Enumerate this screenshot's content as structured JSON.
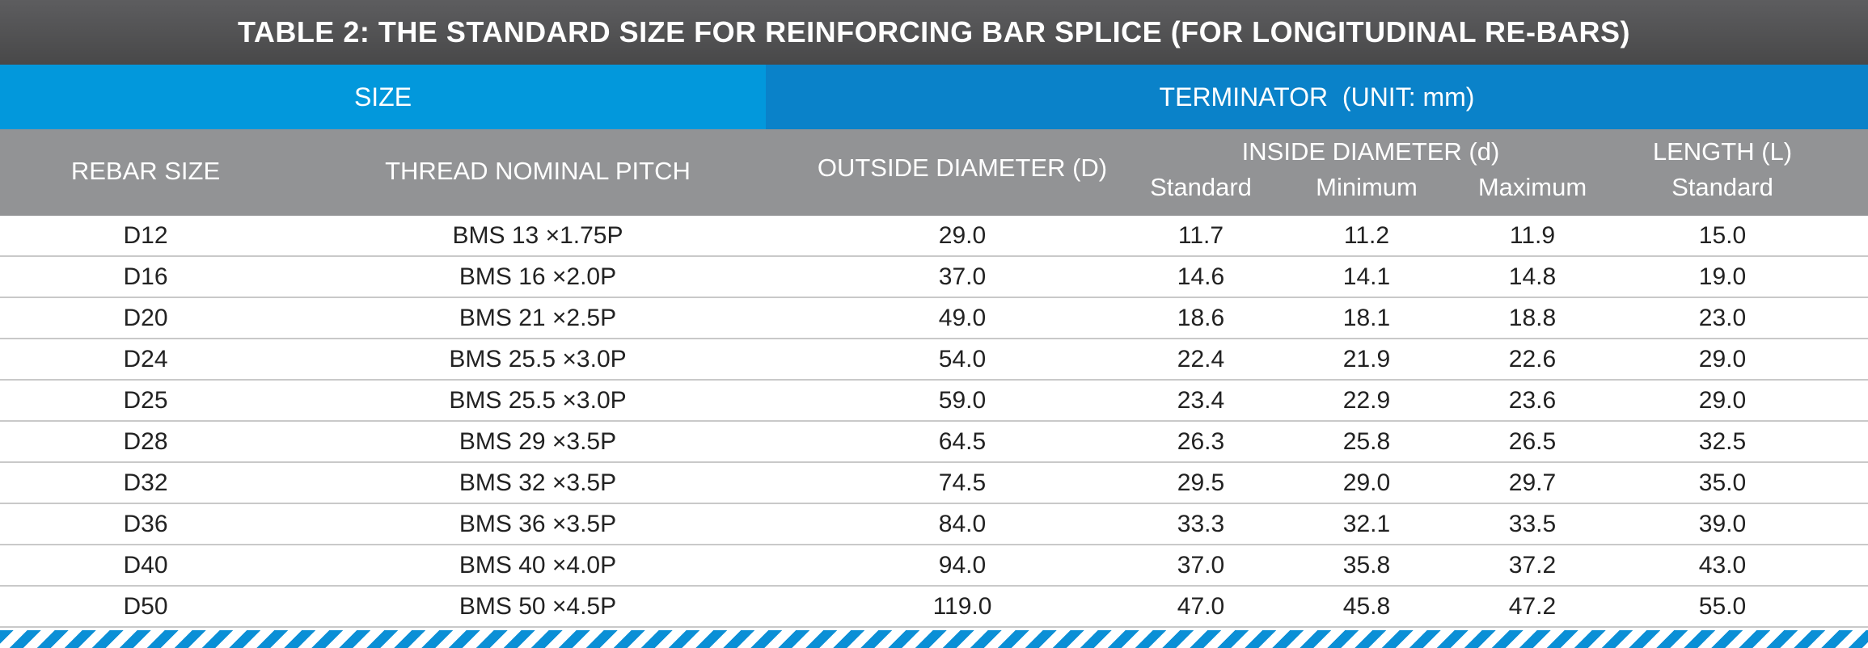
{
  "title": "TABLE 2: THE STANDARD SIZE FOR REINFORCING BAR SPLICE (FOR LONGITUDINAL RE-BARS)",
  "groups": {
    "size": "SIZE",
    "terminator": "TERMINATOR  (UNIT: mm)"
  },
  "headers": {
    "rebar_size": "REBAR SIZE",
    "thread_pitch": "THREAD NOMINAL PITCH",
    "outside_diameter": "OUTSIDE DIAMETER (D)",
    "inside_diameter": "INSIDE DIAMETER (d)",
    "inside_standard": "Standard",
    "inside_minimum": "Minimum",
    "inside_maximum": "Maximum",
    "length": "LENGTH (L)",
    "length_standard": "Standard"
  },
  "rows": [
    {
      "rebar": "D12",
      "thread": "BMS 13 ×1.75P",
      "od": "29.0",
      "std": "11.7",
      "min": "11.2",
      "max": "11.9",
      "len": "15.0"
    },
    {
      "rebar": "D16",
      "thread": "BMS 16 ×2.0P",
      "od": "37.0",
      "std": "14.6",
      "min": "14.1",
      "max": "14.8",
      "len": "19.0"
    },
    {
      "rebar": "D20",
      "thread": "BMS 21 ×2.5P",
      "od": "49.0",
      "std": "18.6",
      "min": "18.1",
      "max": "18.8",
      "len": "23.0"
    },
    {
      "rebar": "D24",
      "thread": "BMS 25.5 ×3.0P",
      "od": "54.0",
      "std": "22.4",
      "min": "21.9",
      "max": "22.6",
      "len": "29.0"
    },
    {
      "rebar": "D25",
      "thread": "BMS 25.5 ×3.0P",
      "od": "59.0",
      "std": "23.4",
      "min": "22.9",
      "max": "23.6",
      "len": "29.0"
    },
    {
      "rebar": "D28",
      "thread": "BMS 29 ×3.5P",
      "od": "64.5",
      "std": "26.3",
      "min": "25.8",
      "max": "26.5",
      "len": "32.5"
    },
    {
      "rebar": "D32",
      "thread": "BMS 32 ×3.5P",
      "od": "74.5",
      "std": "29.5",
      "min": "29.0",
      "max": "29.7",
      "len": "35.0"
    },
    {
      "rebar": "D36",
      "thread": "BMS 36 ×3.5P",
      "od": "84.0",
      "std": "33.3",
      "min": "32.1",
      "max": "33.5",
      "len": "39.0"
    },
    {
      "rebar": "D40",
      "thread": "BMS 40 ×4.0P",
      "od": "94.0",
      "std": "37.0",
      "min": "35.8",
      "max": "37.2",
      "len": "43.0"
    },
    {
      "rebar": "D50",
      "thread": "BMS 50 ×4.5P",
      "od": "119.0",
      "std": "47.0",
      "min": "45.8",
      "max": "47.2",
      "len": "55.0"
    }
  ],
  "colors": {
    "title_bg": "#525253",
    "size_group_bg": "#0298dc",
    "terminator_group_bg": "#0a82c9",
    "header_bg": "#929395",
    "stripe": "#0a8fd6"
  }
}
